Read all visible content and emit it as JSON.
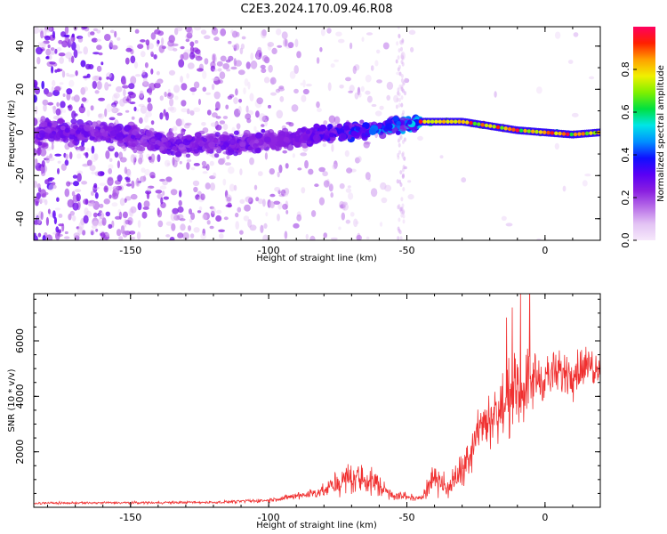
{
  "title": "C2E3.2024.170.09.46.R08",
  "chart_data": [
    {
      "type": "heatmap",
      "xlabel": "Height of straight line (km)",
      "ylabel": "Frequency (Hz)",
      "xlim": [
        -185,
        20
      ],
      "ylim": [
        -50,
        49
      ],
      "xticks": [
        -150,
        -100,
        -50,
        0
      ],
      "yticks": [
        40,
        20,
        0,
        -20,
        -40
      ],
      "colorbar": {
        "label": "Normalized spectral amplitude",
        "range": [
          0,
          1
        ],
        "ticks": [
          "0.0",
          "0.2",
          "0.4",
          "0.6",
          "0.8"
        ],
        "colors": [
          "#f6e8fb",
          "#e3c3f4",
          "#b86ee8",
          "#8a1fe0",
          "#5a00f5",
          "#1010ff",
          "#0090ff",
          "#00e6e6",
          "#00e040",
          "#80f000",
          "#f0f000",
          "#ffa000",
          "#ff2000",
          "#ff0060"
        ]
      },
      "ridge": [
        {
          "x": -160,
          "y": 0
        },
        {
          "x": -130,
          "y": -6
        },
        {
          "x": -100,
          "y": -4
        },
        {
          "x": -80,
          "y": -1
        },
        {
          "x": -60,
          "y": 2
        },
        {
          "x": -45,
          "y": 5
        },
        {
          "x": -30,
          "y": 5
        },
        {
          "x": -20,
          "y": 3
        },
        {
          "x": -10,
          "y": 1
        },
        {
          "x": 0,
          "y": 0
        },
        {
          "x": 10,
          "y": -1
        },
        {
          "x": 20,
          "y": 0
        }
      ]
    },
    {
      "type": "line",
      "xlabel": "Height of straight line (km)",
      "ylabel": "SNR (10 * v/v)",
      "xlim": [
        -185,
        20
      ],
      "ylim": [
        0,
        7700
      ],
      "xticks": [
        -150,
        -100,
        -50,
        0
      ],
      "yticks": [
        2000,
        4000,
        6000
      ],
      "color": "#f03030",
      "envelope": [
        {
          "x": -185,
          "mean": 150,
          "amp": 60
        },
        {
          "x": -120,
          "mean": 180,
          "amp": 70
        },
        {
          "x": -100,
          "mean": 250,
          "amp": 100
        },
        {
          "x": -90,
          "mean": 400,
          "amp": 200
        },
        {
          "x": -80,
          "mean": 600,
          "amp": 350
        },
        {
          "x": -70,
          "mean": 1100,
          "amp": 900
        },
        {
          "x": -62,
          "mean": 900,
          "amp": 800
        },
        {
          "x": -55,
          "mean": 450,
          "amp": 300
        },
        {
          "x": -45,
          "mean": 300,
          "amp": 150
        },
        {
          "x": -40,
          "mean": 1200,
          "amp": 900
        },
        {
          "x": -35,
          "mean": 600,
          "amp": 500
        },
        {
          "x": -28,
          "mean": 1800,
          "amp": 1200
        },
        {
          "x": -24,
          "mean": 3000,
          "amp": 1400
        },
        {
          "x": -18,
          "mean": 3300,
          "amp": 1500
        },
        {
          "x": -12,
          "mean": 4000,
          "amp": 2000
        },
        {
          "x": -5,
          "mean": 4600,
          "amp": 1800
        },
        {
          "x": 0,
          "mean": 4700,
          "amp": 1200
        },
        {
          "x": 10,
          "mean": 4900,
          "amp": 1200
        },
        {
          "x": 20,
          "mean": 5200,
          "amp": 1100
        }
      ]
    }
  ]
}
